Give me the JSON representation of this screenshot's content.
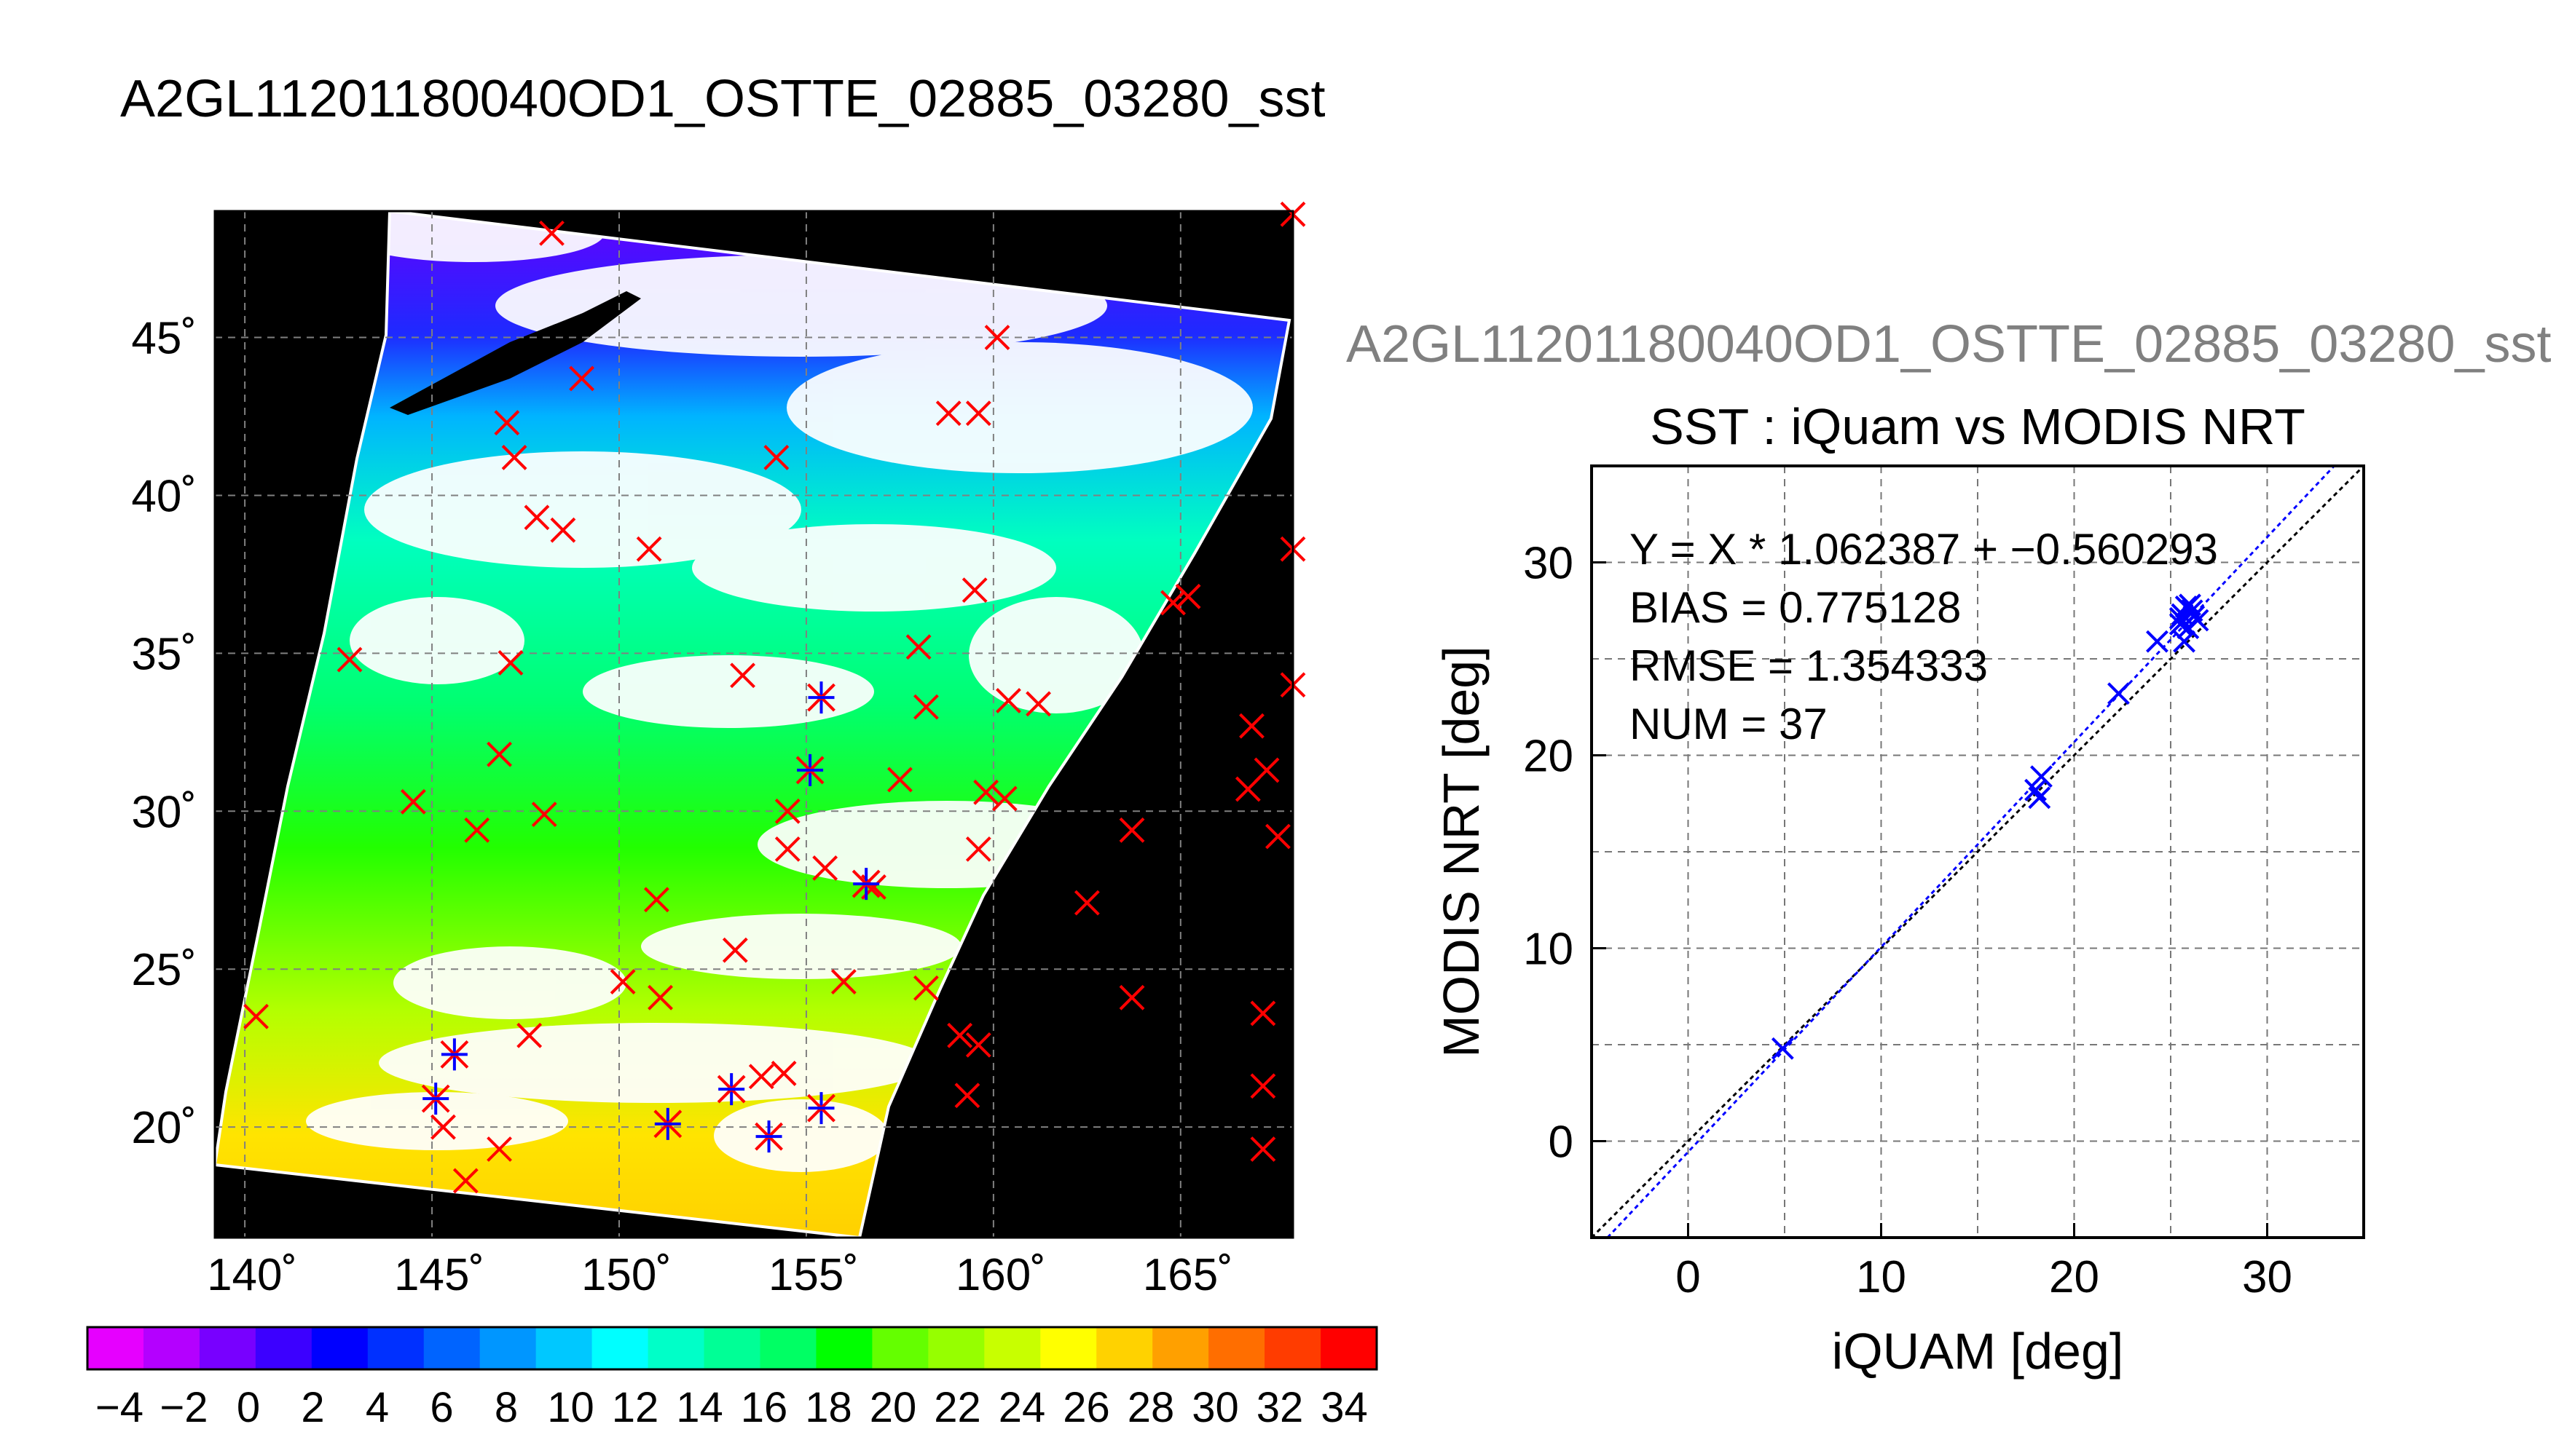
{
  "page_title": "A2GL11201180040OD1_OSTTE_02885_03280_sst",
  "map": {
    "lat_ticks": [
      "20˚",
      "25˚",
      "30˚",
      "35˚",
      "40˚",
      "45˚"
    ],
    "lon_ticks": [
      "140˚",
      "145˚",
      "150˚",
      "155˚",
      "160˚",
      "165˚"
    ],
    "colors": {
      "land_mask": "#000000",
      "cloud": "#ffffff",
      "grid": "#808080"
    }
  },
  "colorbar": {
    "tick_labels": [
      "−4",
      "−2",
      "0",
      "2",
      "4",
      "6",
      "8",
      "10",
      "12",
      "14",
      "16",
      "18",
      "20",
      "22",
      "24",
      "26",
      "28",
      "30",
      "32",
      "34"
    ],
    "colors": [
      "#e600ff",
      "#b400ff",
      "#7800ff",
      "#3c00ff",
      "#0000ff",
      "#0030ff",
      "#0064ff",
      "#0096ff",
      "#00c8ff",
      "#00ffff",
      "#00ffc8",
      "#00ff96",
      "#00ff64",
      "#00ff00",
      "#64ff00",
      "#96ff00",
      "#c8ff00",
      "#ffff00",
      "#ffd200",
      "#ffa000",
      "#ff6e00",
      "#ff3c00",
      "#ff0000"
    ]
  },
  "scatter_panel": {
    "gray_title": "A2GL11201180040OD1_OSTTE_02885_03280_sst",
    "stats": [
      "Y = X * 1.062387 + −0.560293",
      "BIAS = 0.775128",
      "RMSE = 1.354333",
      "NUM = 37"
    ],
    "colors": {
      "points": "#0000ff",
      "fit_line": "#0000ff",
      "identity_line": "#000000"
    }
  },
  "chart_data": [
    {
      "type": "heatmap",
      "title": "",
      "xlabel": "",
      "ylabel": "",
      "x_range_deg_lon": [
        139.2,
        168
      ],
      "y_range_deg_lat": [
        16.5,
        49
      ],
      "colorbar_range": [
        -5,
        35
      ],
      "markers": {
        "red_x": [
          [
            148.2,
            48.3
          ],
          [
            149,
            43.7
          ],
          [
            147,
            42.3
          ],
          [
            147.2,
            41.2
          ],
          [
            147.8,
            39.3
          ],
          [
            148.5,
            38.9
          ],
          [
            150.8,
            38.3
          ],
          [
            142.8,
            34.8
          ],
          [
            147.1,
            34.7
          ],
          [
            153.3,
            34.3
          ],
          [
            146.8,
            31.8
          ],
          [
            158,
            35.2
          ],
          [
            159.5,
            37
          ],
          [
            158.2,
            33.3
          ],
          [
            160.4,
            33.5
          ],
          [
            161.2,
            33.4
          ],
          [
            144.5,
            30.3
          ],
          [
            146.2,
            29.4
          ],
          [
            148,
            29.9
          ],
          [
            157.5,
            31
          ],
          [
            154.5,
            30
          ],
          [
            154.5,
            28.8
          ],
          [
            155.5,
            28.2
          ],
          [
            156.8,
            27.6
          ],
          [
            159.6,
            28.8
          ],
          [
            159.8,
            30.6
          ],
          [
            160.3,
            30.4
          ],
          [
            151,
            27.2
          ],
          [
            153.1,
            25.6
          ],
          [
            150.1,
            24.6
          ],
          [
            151.1,
            24.1
          ],
          [
            156,
            24.6
          ],
          [
            158.2,
            24.4
          ],
          [
            159.1,
            22.9
          ],
          [
            159.6,
            22.6
          ],
          [
            147.6,
            22.9
          ],
          [
            145.3,
            20
          ],
          [
            145.9,
            18.3
          ],
          [
            146.8,
            19.3
          ],
          [
            153.8,
            21.6
          ],
          [
            154.4,
            21.7
          ],
          [
            159.3,
            21
          ],
          [
            164.8,
            36.6
          ],
          [
            165.2,
            36.8
          ],
          [
            166.9,
            32.7
          ],
          [
            167.3,
            31.3
          ],
          [
            166.8,
            30.7
          ],
          [
            167.6,
            29.2
          ],
          [
            163.7,
            29.4
          ],
          [
            162.5,
            27.1
          ],
          [
            163.7,
            24.1
          ],
          [
            167.2,
            23.6
          ],
          [
            167.2,
            21.3
          ],
          [
            167.2,
            19.3
          ],
          [
            168,
            38.3
          ],
          [
            168,
            34
          ],
          [
            168,
            48.9
          ],
          [
            140.3,
            23.5
          ],
          [
            160.1,
            45
          ],
          [
            158.8,
            42.6
          ],
          [
            159.6,
            42.6
          ],
          [
            154.2,
            41.2
          ]
        ],
        "blue_star": [
          [
            155.4,
            33.6
          ],
          [
            155.1,
            31.3
          ],
          [
            156.6,
            27.7
          ],
          [
            145.6,
            22.3
          ],
          [
            145.1,
            20.9
          ],
          [
            151.3,
            20.1
          ],
          [
            153,
            21.2
          ],
          [
            154,
            19.7
          ],
          [
            155.4,
            20.6
          ]
        ]
      }
    },
    {
      "type": "scatter",
      "title": "SST : iQuam vs MODIS NRT",
      "xlabel": "iQUAM [deg]",
      "ylabel": "MODIS NRT [deg]",
      "xlim": [
        -5,
        35
      ],
      "ylim": [
        -5,
        35
      ],
      "x_ticks": [
        "0",
        "10",
        "20",
        "30"
      ],
      "y_ticks": [
        "0",
        "10",
        "20",
        "30"
      ],
      "grid": true,
      "points": [
        [
          4.9,
          4.8
        ],
        [
          18,
          18.2
        ],
        [
          18.2,
          17.8
        ],
        [
          18.3,
          18.9
        ],
        [
          22.3,
          23.2
        ],
        [
          24.3,
          25.9
        ],
        [
          25.5,
          26.8
        ],
        [
          25.6,
          27.3
        ],
        [
          25.8,
          27.7
        ],
        [
          25.9,
          26.6
        ],
        [
          26.1,
          27.5
        ],
        [
          26.2,
          27.2
        ],
        [
          25.7,
          25.9
        ],
        [
          26.4,
          27
        ],
        [
          26,
          27.8
        ],
        [
          25.5,
          27.1
        ]
      ],
      "fit": {
        "slope": 1.062387,
        "intercept": -0.560293
      },
      "identity_line": true
    }
  ]
}
